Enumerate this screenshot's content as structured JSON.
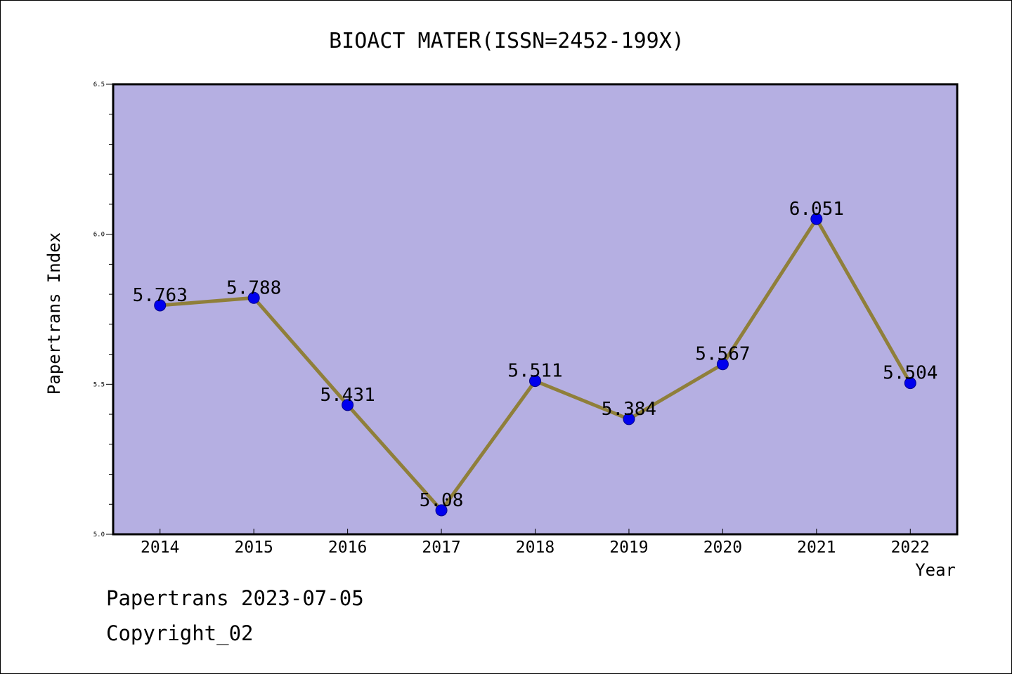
{
  "chart_data": {
    "type": "line",
    "title": "BIOACT MATER(ISSN=2452-199X)",
    "xlabel": "Year",
    "ylabel": "Papertrans Index",
    "categories": [
      "2014",
      "2015",
      "2016",
      "2017",
      "2018",
      "2019",
      "2020",
      "2021",
      "2022"
    ],
    "series": [
      {
        "values": [
          5.763,
          5.788,
          5.431,
          5.08,
          5.511,
          5.384,
          5.567,
          6.051,
          5.504
        ],
        "labels": [
          "5.763",
          "5.788",
          "5.431",
          "5.08",
          "5.511",
          "5.384",
          "5.567",
          "6.051",
          "5.504"
        ]
      }
    ],
    "ylim": [
      5.0,
      6.5
    ],
    "yticks": [
      "5.0",
      "5.5",
      "6.0",
      "6.5"
    ],
    "ymajor_step": 0.5,
    "yminor_step": 0.1,
    "grid": false,
    "legend": "none",
    "colors": {
      "plot_background": "#b5afe2",
      "line": "#8f7f3a",
      "marker": "#0000ee",
      "marker_edge": "#00008b",
      "axis": "#000000"
    }
  },
  "footer": {
    "date_line": "Papertrans 2023-07-05",
    "copyright": "Copyright_02"
  }
}
